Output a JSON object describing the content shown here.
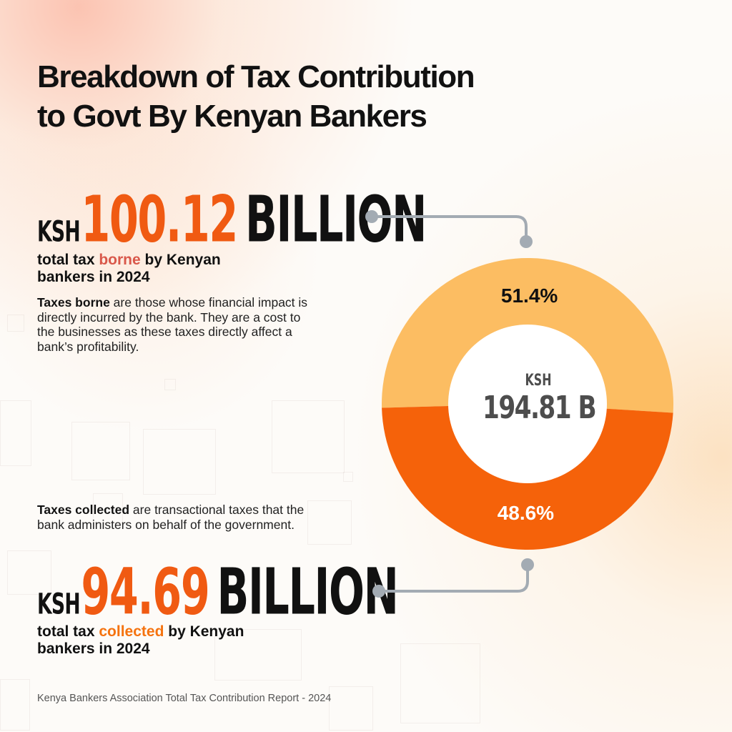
{
  "header": {
    "title_line1": "Breakdown of Tax Contribution",
    "title_line2": "to Govt By Kenyan Bankers"
  },
  "borne": {
    "currency": "KSH",
    "amount": "100.12",
    "unit": "BILLION",
    "caption_pre": "total tax ",
    "caption_hl": "borne",
    "caption_post": " by Kenyan bankers in 2024",
    "para_bold": "Taxes borne",
    "para_text": " are those whose financial impact is directly incurred by the bank. They are a cost to the businesses as these taxes directly affect a bank’s profitability."
  },
  "collected": {
    "currency": "KSH",
    "amount": "94.69",
    "unit": "BILLION",
    "caption_pre": "total tax ",
    "caption_hl": "collected",
    "caption_post": " by Kenyan bankers in 2024",
    "para_bold": "Taxes collected",
    "para_text": " are transactional taxes that the bank administers on behalf of the government."
  },
  "chart_data": {
    "type": "pie",
    "variant": "donut",
    "center_label": {
      "currency": "KSH",
      "value": "194.81 B"
    },
    "slices": [
      {
        "label": "51.4%",
        "value": 51.4,
        "amount": "100.12 BILLION",
        "color": "#fcbd62"
      },
      {
        "label": "48.6%",
        "value": 48.6,
        "amount": "94.69 BILLION",
        "color": "#f5620a"
      }
    ]
  },
  "footer": {
    "source": "Kenya Bankers Association Total Tax Contribution Report - 2024"
  },
  "colors": {
    "accent_orange": "#f05a12",
    "borne_highlight": "#d9584a",
    "collected_highlight": "#f5730f",
    "connector": "#a3abb3",
    "center_text": "#4d4d4d"
  }
}
